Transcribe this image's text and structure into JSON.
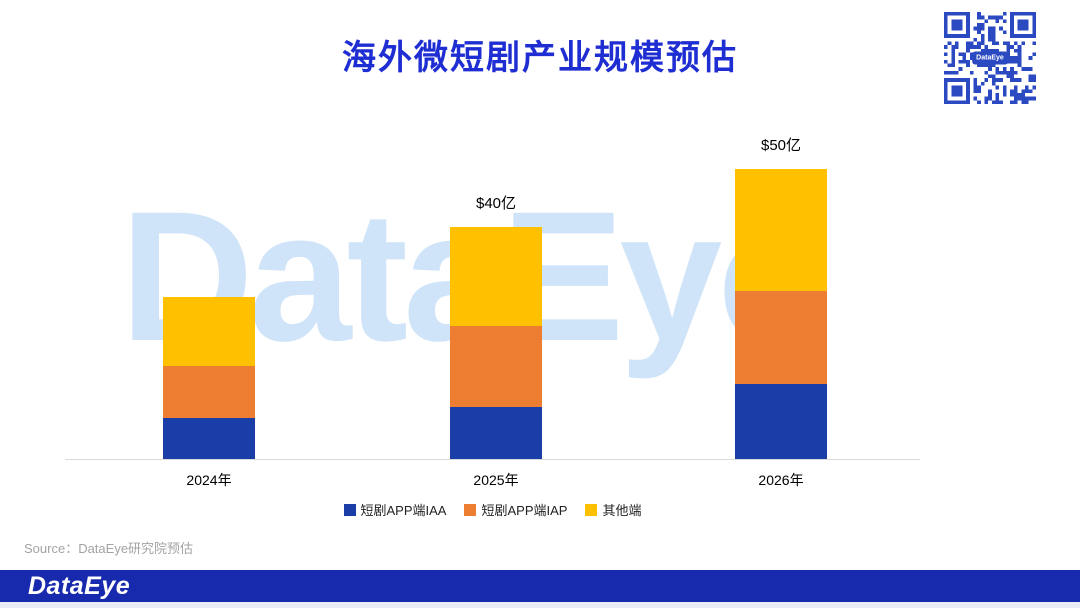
{
  "page": {
    "title": "海外微短剧产业规模预估",
    "watermark": "DataEye",
    "qr_label": "DataEye",
    "source": "Source：DataEye研究院预估",
    "footer_logo": "DataEye"
  },
  "colors": {
    "title": "#1f2ed2",
    "watermark": "#cfe4f8",
    "footer_bg": "#1729ad",
    "qr": "#2b49c0",
    "axis": "#d9d9d9"
  },
  "chart_data": {
    "type": "bar",
    "stacked": true,
    "title": "海外微短剧产业规模预估",
    "categories": [
      "2024年",
      "2025年",
      "2026年"
    ],
    "series": [
      {
        "name": "短剧APP端IAA",
        "color": "#1a3da8",
        "values": [
          7,
          9,
          13
        ]
      },
      {
        "name": "短剧APP端IAP",
        "color": "#ed7d31",
        "values": [
          9,
          14,
          16
        ]
      },
      {
        "name": "其他端",
        "color": "#ffc000",
        "values": [
          12,
          17,
          21
        ]
      }
    ],
    "totals_labels": [
      "",
      "$40亿",
      "$50亿"
    ],
    "ylim": [
      0,
      55
    ],
    "grid": false,
    "legend_position": "bottom"
  }
}
